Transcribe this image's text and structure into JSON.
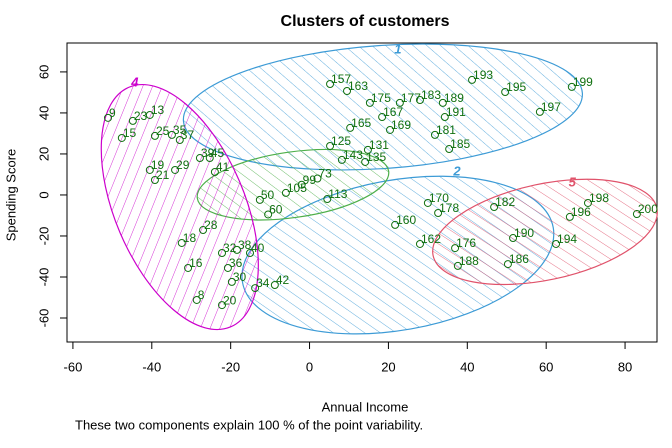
{
  "chart_data": {
    "type": "clusplot",
    "title": "Clusters of customers",
    "x_label": "Annual Income",
    "y_label": "Spending Score",
    "footnote": "These two components explain 100 % of the point variability.",
    "xlim": [
      -61.5,
      88.1
    ],
    "ylim": [
      -71.7,
      74.1
    ],
    "xticks": [
      -60,
      -40,
      -20,
      0,
      20,
      40,
      60,
      80
    ],
    "yticks": [
      -60,
      -40,
      -20,
      0,
      20,
      40,
      60
    ],
    "point_color": "#107010",
    "clusters": [
      {
        "label": "1",
        "color": "#3d9bd6",
        "cx": 18.6,
        "cy": 42.9,
        "rx": 50.7,
        "ry": 30,
        "angle": -4,
        "label_x": 22.4,
        "label_y": 70.7
      },
      {
        "label": "2",
        "color": "#3d9bd6",
        "cx": 22.4,
        "cy": -29.3,
        "rx": 40,
        "ry": 36.6,
        "angle": -10,
        "label_x": 37.4,
        "label_y": 11.2
      },
      {
        "color": "#4daf4a",
        "cx": -4.2,
        "cy": 5,
        "rx": 24.5,
        "ry": 16,
        "angle": -8
      },
      {
        "label": "4",
        "color": "#cc00cc",
        "cx": -32.9,
        "cy": -5.9,
        "rx": 33,
        "ry": 31.7,
        "angle": 67,
        "label_x": -44.3,
        "label_y": 54.6
      },
      {
        "label": "5",
        "color": "#e0536b",
        "cx": 59.7,
        "cy": -18,
        "rx": 29,
        "ry": 23.4,
        "angle": -12,
        "label_x": 66.6,
        "label_y": 5.9
      }
    ],
    "points": {
      "labels": [
        "193",
        "195",
        "199",
        "197",
        "189",
        "191",
        "181",
        "185",
        "169",
        "167",
        "157",
        "163",
        "125",
        "131",
        "135",
        "143",
        "177",
        "183",
        "175",
        "165",
        "170",
        "178",
        "182",
        "196",
        "198",
        "200",
        "194",
        "190",
        "186",
        "176",
        "188",
        "162",
        "160",
        "9",
        "23",
        "13",
        "25",
        "35",
        "37",
        "15",
        "19",
        "29",
        "21",
        "39",
        "45",
        "41",
        "18",
        "28",
        "32",
        "38",
        "40",
        "36",
        "30",
        "16",
        "34",
        "42",
        "8",
        "20",
        "50",
        "60",
        "99",
        "73",
        "105",
        "113"
      ],
      "x": [
        41.2,
        49.6,
        66.5,
        58.4,
        33.8,
        34.3,
        31.8,
        35.4,
        20.4,
        18.4,
        5.2,
        9.5,
        5.2,
        14.8,
        14.1,
        8.2,
        22.9,
        28,
        15.3,
        10.3,
        30,
        32.6,
        46.8,
        66,
        70.6,
        83,
        62.5,
        51.6,
        50.3,
        36.9,
        37.6,
        28,
        21.7,
        -51.1,
        -44.8,
        -40.5,
        -39.2,
        -34.9,
        -32.9,
        -47.6,
        -40.5,
        -34.1,
        -39.2,
        -27.8,
        -25.3,
        -24,
        -32.4,
        -27,
        -22.2,
        -18.4,
        -15.1,
        -20.7,
        -19.7,
        -30.8,
        -13.8,
        -8.8,
        -28.6,
        -22.2,
        -12.6,
        -10.5,
        -2,
        2,
        -6,
        4.5
      ],
      "y": [
        56.1,
        50.2,
        52.7,
        40.5,
        44.9,
        38,
        29.3,
        22.4,
        31.7,
        38,
        54.1,
        50.7,
        23.9,
        22,
        16.1,
        17.1,
        44.9,
        46.3,
        44.9,
        32.7,
        -3.9,
        -8.8,
        -5.9,
        -10.7,
        -3.9,
        -9.3,
        -23.9,
        -21,
        -33.7,
        -25.9,
        -34.6,
        -23.9,
        -14.6,
        37.6,
        36.1,
        39,
        28.8,
        29.3,
        26.8,
        27.8,
        12.2,
        12.2,
        7.3,
        18,
        18,
        11.2,
        -23.4,
        -17.1,
        -28.3,
        -26.8,
        -28.3,
        -35.6,
        -42.4,
        -35.6,
        -45.4,
        -43.9,
        -51.2,
        -53.7,
        -2.4,
        -9.5,
        5,
        8,
        1,
        -2
      ]
    }
  }
}
